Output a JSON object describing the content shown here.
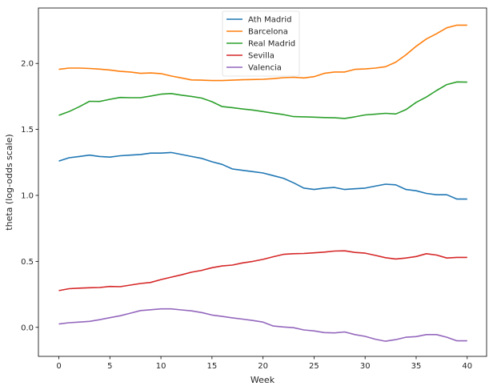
{
  "chart_data": {
    "type": "line",
    "xlabel": "Week",
    "ylabel": "theta (log-odds scale)",
    "xlim": [
      -2,
      41.9
    ],
    "ylim": [
      -0.22,
      2.42
    ],
    "xticks": [
      0,
      5,
      10,
      15,
      20,
      25,
      30,
      35,
      40
    ],
    "yticks": [
      0.0,
      0.5,
      1.0,
      1.5,
      2.0
    ],
    "grid": false,
    "legend_position": "top-center",
    "x": [
      0,
      1,
      2,
      3,
      4,
      5,
      6,
      7,
      8,
      9,
      10,
      11,
      12,
      13,
      14,
      15,
      16,
      17,
      18,
      19,
      20,
      21,
      22,
      23,
      24,
      25,
      26,
      27,
      28,
      29,
      30,
      31,
      32,
      33,
      34,
      35,
      36,
      37,
      38,
      39,
      40
    ],
    "series": [
      {
        "name": "Ath Madrid",
        "color": "#1f77b4",
        "values": [
          1.26,
          1.285,
          1.295,
          1.305,
          1.295,
          1.29,
          1.3,
          1.305,
          1.31,
          1.32,
          1.32,
          1.325,
          1.31,
          1.295,
          1.28,
          1.255,
          1.235,
          1.2,
          1.19,
          1.18,
          1.17,
          1.15,
          1.13,
          1.095,
          1.055,
          1.045,
          1.055,
          1.06,
          1.045,
          1.05,
          1.055,
          1.07,
          1.085,
          1.08,
          1.045,
          1.035,
          1.015,
          1.005,
          1.005,
          0.972,
          0.972
        ]
      },
      {
        "name": "Barcelona",
        "color": "#ff7f0e",
        "values": [
          1.955,
          1.965,
          1.965,
          1.962,
          1.957,
          1.95,
          1.94,
          1.935,
          1.925,
          1.928,
          1.923,
          1.905,
          1.89,
          1.875,
          1.873,
          1.87,
          1.87,
          1.873,
          1.876,
          1.878,
          1.88,
          1.885,
          1.892,
          1.895,
          1.89,
          1.9,
          1.925,
          1.935,
          1.935,
          1.955,
          1.958,
          1.965,
          1.975,
          2.01,
          2.065,
          2.13,
          2.185,
          2.225,
          2.27,
          2.29,
          2.29
        ]
      },
      {
        "name": "Real Madrid",
        "color": "#2ca02c",
        "values": [
          1.607,
          1.635,
          1.672,
          1.713,
          1.712,
          1.728,
          1.742,
          1.74,
          1.74,
          1.753,
          1.767,
          1.772,
          1.76,
          1.75,
          1.737,
          1.71,
          1.673,
          1.665,
          1.655,
          1.647,
          1.635,
          1.623,
          1.612,
          1.597,
          1.595,
          1.593,
          1.59,
          1.588,
          1.583,
          1.595,
          1.61,
          1.615,
          1.622,
          1.617,
          1.65,
          1.705,
          1.745,
          1.795,
          1.84,
          1.86,
          1.858
        ]
      },
      {
        "name": "Sevilla",
        "color": "#d62728",
        "values": [
          0.278,
          0.293,
          0.297,
          0.3,
          0.302,
          0.31,
          0.308,
          0.32,
          0.332,
          0.34,
          0.362,
          0.38,
          0.398,
          0.418,
          0.432,
          0.452,
          0.465,
          0.472,
          0.488,
          0.5,
          0.515,
          0.535,
          0.553,
          0.558,
          0.56,
          0.565,
          0.57,
          0.578,
          0.58,
          0.568,
          0.562,
          0.545,
          0.528,
          0.518,
          0.525,
          0.537,
          0.558,
          0.548,
          0.525,
          0.53,
          0.53
        ]
      },
      {
        "name": "Valencia",
        "color": "#9467bd",
        "values": [
          0.025,
          0.035,
          0.04,
          0.045,
          0.058,
          0.073,
          0.088,
          0.107,
          0.127,
          0.133,
          0.14,
          0.14,
          0.132,
          0.125,
          0.112,
          0.093,
          0.083,
          0.072,
          0.062,
          0.052,
          0.04,
          0.01,
          0.003,
          -0.003,
          -0.02,
          -0.027,
          -0.04,
          -0.042,
          -0.035,
          -0.055,
          -0.068,
          -0.09,
          -0.105,
          -0.093,
          -0.075,
          -0.07,
          -0.055,
          -0.055,
          -0.075,
          -0.102,
          -0.102
        ]
      }
    ]
  }
}
